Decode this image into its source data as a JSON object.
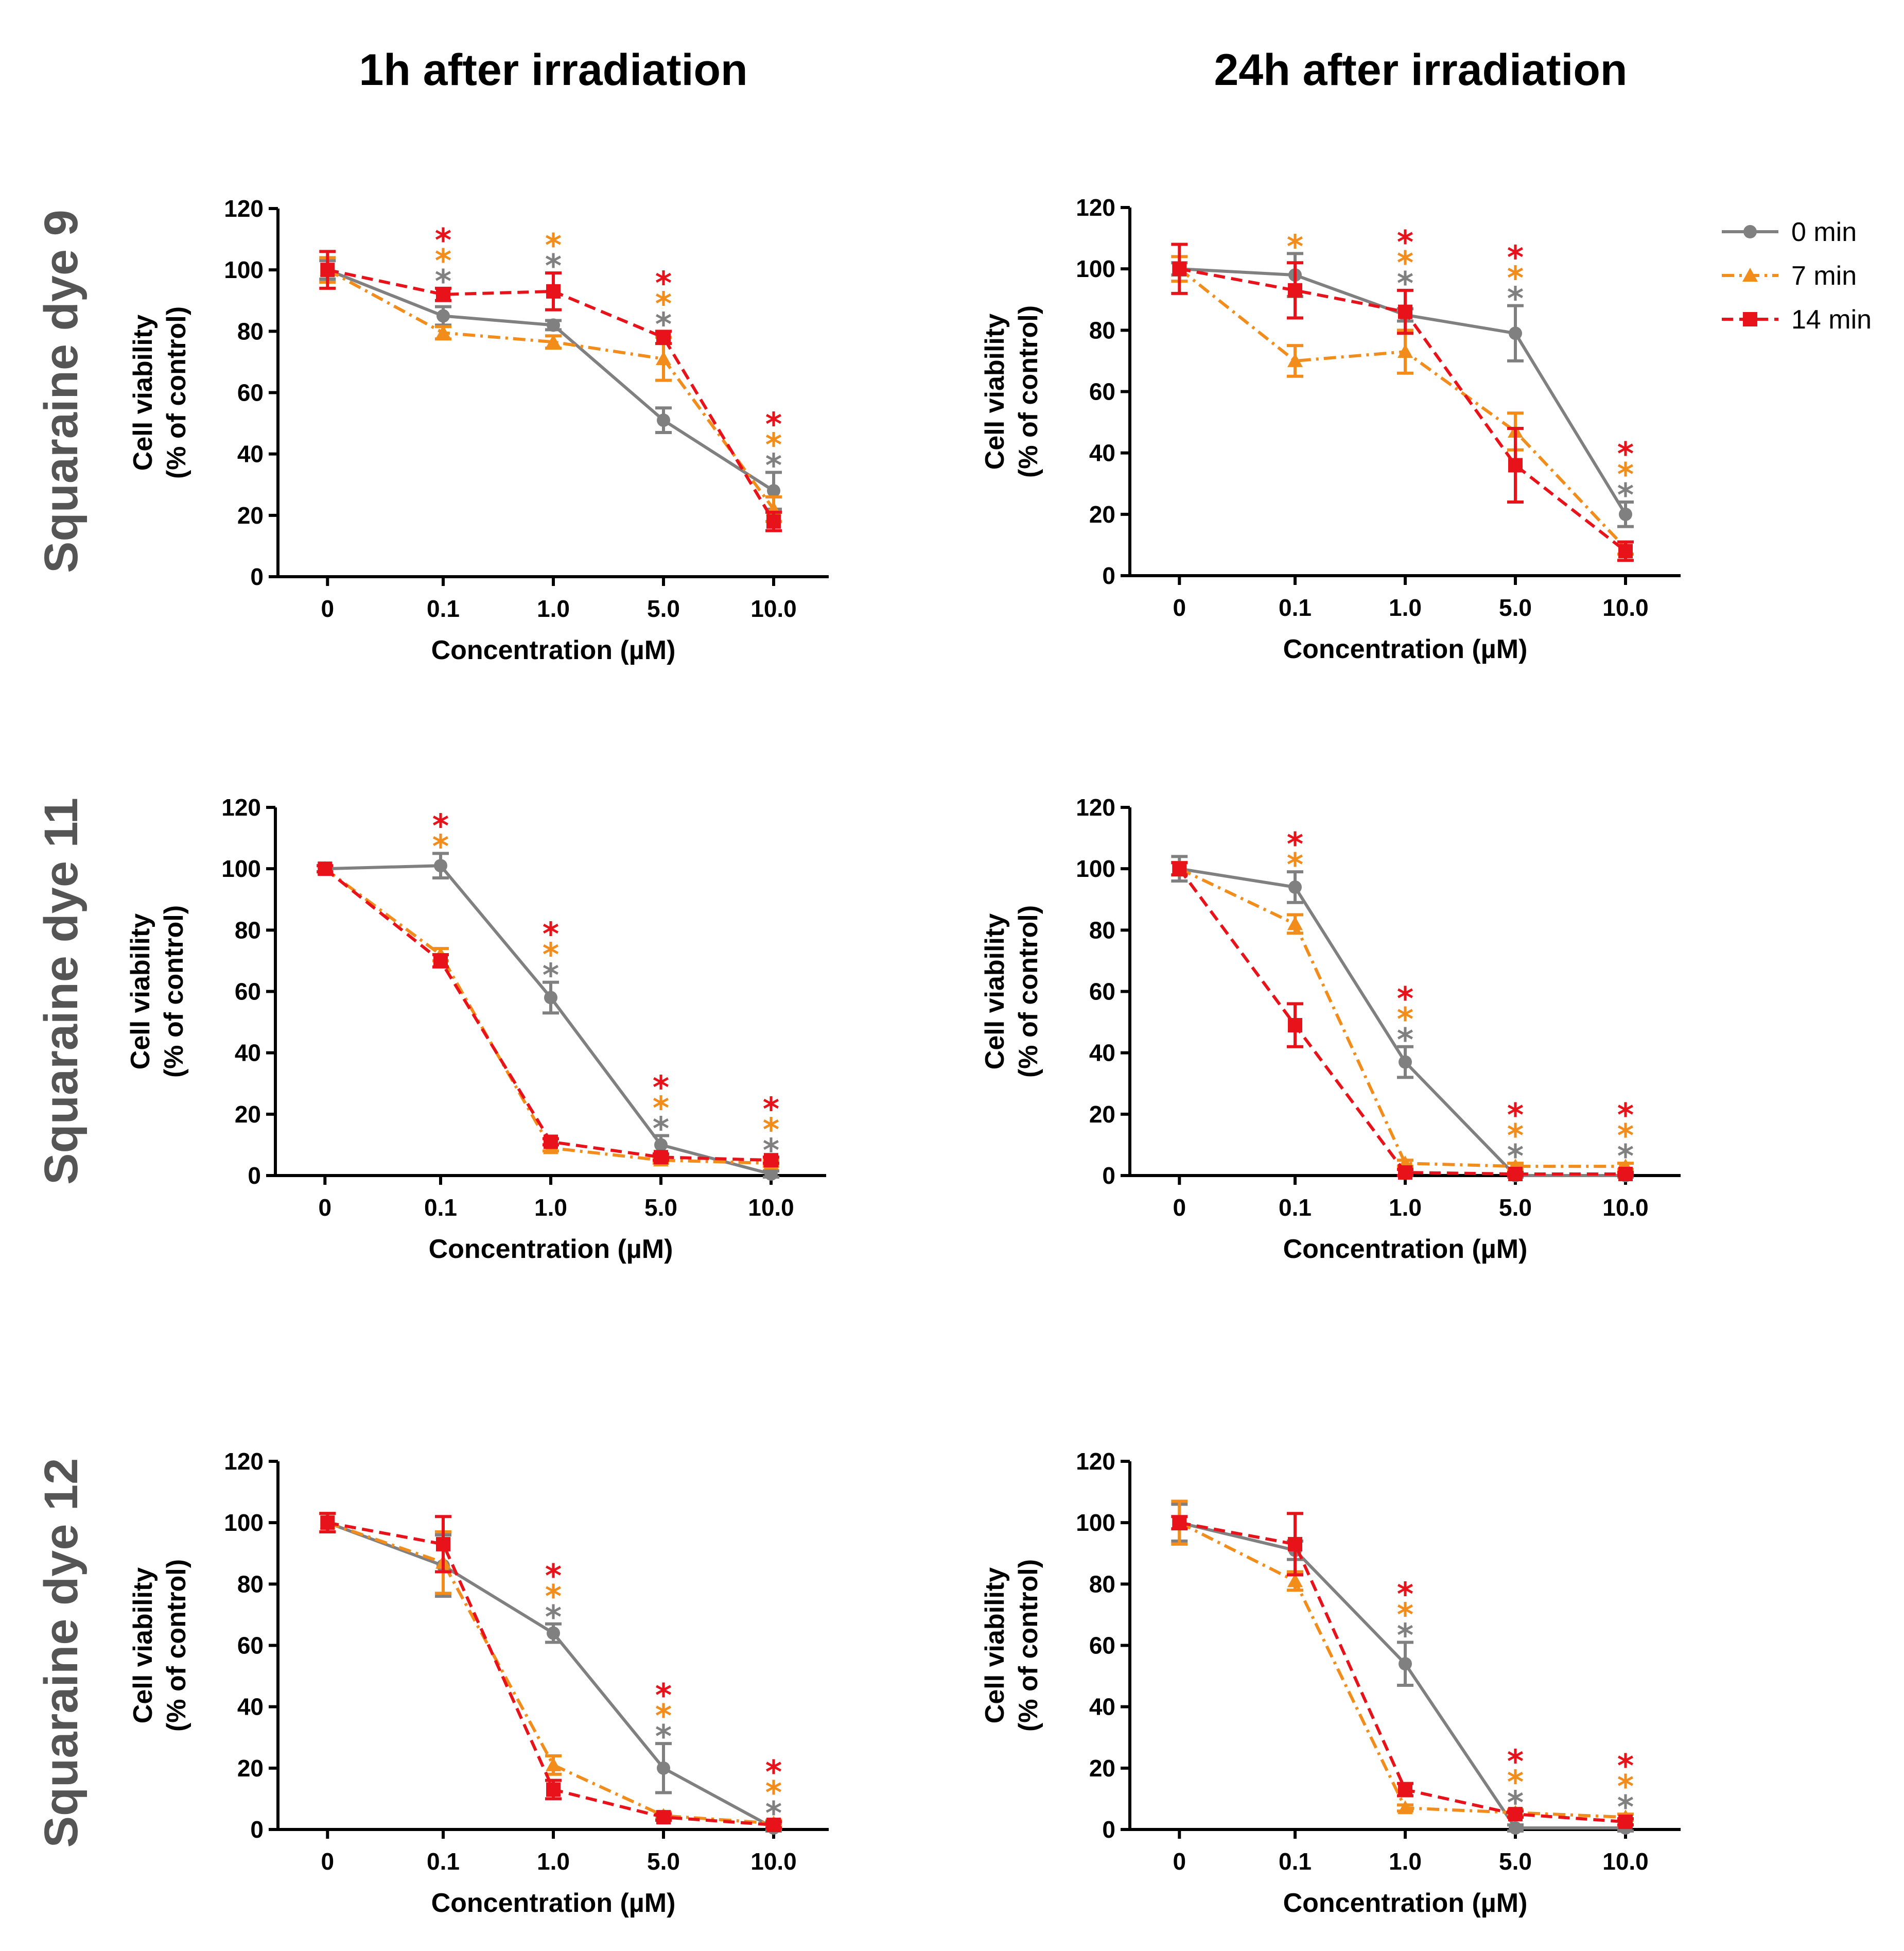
{
  "column_titles": [
    "1h after irradiation",
    "24h after irradiation"
  ],
  "row_titles": [
    "Squaraine dye 9",
    "Squaraine dye 11",
    "Squaraine dye 12"
  ],
  "legend": [
    {
      "name": "0 min",
      "color": "#808080",
      "marker": "circle",
      "dash": "solid"
    },
    {
      "name": "7 min",
      "color": "#f28c1a",
      "marker": "triangle",
      "dash": "dashdot"
    },
    {
      "name": "14 min",
      "color": "#e8121a",
      "marker": "square",
      "dash": "dashed"
    }
  ],
  "chart_data": [
    {
      "id": "dye9-1h",
      "type": "line",
      "title": "1h after irradiation",
      "row": "Squaraine dye 9",
      "xlabel": "Concentration (µM)",
      "ylabel_line1": "Cell viability",
      "ylabel_line2": "(% of control)",
      "ylim": [
        0,
        120
      ],
      "yticks": [
        "0",
        "20",
        "40",
        "60",
        "80",
        "100",
        "120"
      ],
      "categories": [
        "0",
        "0.1",
        "1.0",
        "5.0",
        "10.0"
      ],
      "series": [
        {
          "name": "0 min",
          "values": [
            100,
            85,
            82,
            51,
            28
          ],
          "errors": [
            3,
            3,
            1.5,
            4,
            6
          ]
        },
        {
          "name": "7 min",
          "values": [
            100,
            79.5,
            76.5,
            71,
            22
          ],
          "errors": [
            4,
            2,
            2,
            7,
            4
          ]
        },
        {
          "name": "14 min",
          "values": [
            100,
            92,
            93,
            78,
            18
          ],
          "errors": [
            6,
            2,
            6,
            2,
            3
          ]
        }
      ],
      "significance": [
        [],
        [
          "14 min",
          "7 min",
          "0 min"
        ],
        [
          "7 min",
          "0 min"
        ],
        [
          "14 min",
          "7 min",
          "0 min"
        ],
        [
          "14 min",
          "7 min",
          "0 min"
        ]
      ]
    },
    {
      "id": "dye9-24h",
      "type": "line",
      "title": "24h after irradiation",
      "row": "Squaraine dye 9",
      "xlabel": "Concentration (µM)",
      "ylabel_line1": "Cell viability",
      "ylabel_line2": "(% of control)",
      "ylim": [
        0,
        120
      ],
      "yticks": [
        "0",
        "20",
        "40",
        "60",
        "80",
        "100",
        "120"
      ],
      "categories": [
        "0",
        "0.1",
        "1.0",
        "5.0",
        "10.0"
      ],
      "series": [
        {
          "name": "0 min",
          "values": [
            100,
            98,
            85,
            79,
            20
          ],
          "errors": [
            2,
            7,
            2,
            9,
            4
          ]
        },
        {
          "name": "7 min",
          "values": [
            100,
            70,
            73,
            47,
            9
          ],
          "errors": [
            4,
            5,
            7,
            6,
            2
          ]
        },
        {
          "name": "14 min",
          "values": [
            100,
            93,
            86,
            36,
            8
          ],
          "errors": [
            8,
            9,
            7,
            12,
            3
          ]
        }
      ],
      "significance": [
        [],
        [
          "7 min"
        ],
        [
          "14 min",
          "7 min",
          "0 min"
        ],
        [
          "14 min",
          "7 min",
          "0 min"
        ],
        [
          "14 min",
          "7 min",
          "0 min"
        ]
      ]
    },
    {
      "id": "dye11-1h",
      "type": "line",
      "title": "1h after irradiation",
      "row": "Squaraine dye 11",
      "xlabel": "Concentration (µM)",
      "ylabel_line1": "Cell viability",
      "ylabel_line2": "(% of control)",
      "ylim": [
        0,
        120
      ],
      "yticks": [
        "0",
        "20",
        "40",
        "60",
        "80",
        "100",
        "120"
      ],
      "categories": [
        "0",
        "0.1",
        "1.0",
        "5.0",
        "10.0"
      ],
      "series": [
        {
          "name": "0 min",
          "values": [
            100,
            101,
            58,
            10,
            0.5
          ],
          "errors": [
            1,
            4,
            5,
            3,
            1
          ]
        },
        {
          "name": "7 min",
          "values": [
            100,
            72,
            9,
            5,
            4
          ],
          "errors": [
            1,
            2,
            1,
            1,
            1
          ]
        },
        {
          "name": "14 min",
          "values": [
            100,
            70,
            11,
            6,
            5
          ],
          "errors": [
            1,
            2,
            1,
            1,
            1
          ]
        }
      ],
      "significance": [
        [],
        [
          "14 min",
          "7 min"
        ],
        [
          "14 min",
          "7 min",
          "0 min"
        ],
        [
          "14 min",
          "7 min",
          "0 min"
        ],
        [
          "14 min",
          "7 min",
          "0 min"
        ]
      ]
    },
    {
      "id": "dye11-24h",
      "type": "line",
      "title": "24h after irradiation",
      "row": "Squaraine dye 11",
      "xlabel": "Concentration (µM)",
      "ylabel_line1": "Cell viability",
      "ylabel_line2": "(% of control)",
      "ylim": [
        0,
        120
      ],
      "yticks": [
        "0",
        "20",
        "40",
        "60",
        "80",
        "100",
        "120"
      ],
      "categories": [
        "0",
        "0.1",
        "1.0",
        "5.0",
        "10.0"
      ],
      "series": [
        {
          "name": "0 min",
          "values": [
            100,
            94,
            37,
            0,
            0
          ],
          "errors": [
            4,
            5,
            5,
            0.5,
            0.5
          ]
        },
        {
          "name": "7 min",
          "values": [
            100,
            82,
            4,
            3,
            3
          ],
          "errors": [
            2,
            3,
            1,
            1,
            1
          ]
        },
        {
          "name": "14 min",
          "values": [
            100,
            49,
            1,
            0.5,
            0.5
          ],
          "errors": [
            2,
            7,
            1,
            0.5,
            0.5
          ]
        }
      ],
      "significance": [
        [],
        [
          "14 min",
          "7 min"
        ],
        [
          "14 min",
          "7 min",
          "0 min"
        ],
        [
          "14 min",
          "7 min",
          "0 min"
        ],
        [
          "14 min",
          "7 min",
          "0 min"
        ]
      ]
    },
    {
      "id": "dye12-1h",
      "type": "line",
      "title": "1h after irradiation",
      "row": "Squaraine dye 12",
      "xlabel": "Concentration (µM)",
      "ylabel_line1": "Cell viability",
      "ylabel_line2": "(% of control)",
      "ylim": [
        0,
        120
      ],
      "yticks": [
        "0",
        "20",
        "40",
        "60",
        "80",
        "100",
        "120"
      ],
      "categories": [
        "0",
        "0.1",
        "1.0",
        "5.0",
        "10.0"
      ],
      "series": [
        {
          "name": "0 min",
          "values": [
            100,
            86,
            64,
            20,
            0.5
          ],
          "errors": [
            3,
            10,
            3,
            8,
            1
          ]
        },
        {
          "name": "7 min",
          "values": [
            100,
            87,
            21,
            4.5,
            2
          ],
          "errors": [
            3,
            10,
            3,
            1,
            1
          ]
        },
        {
          "name": "14 min",
          "values": [
            100,
            93,
            13,
            4,
            1.5
          ],
          "errors": [
            3,
            9,
            3,
            1,
            1
          ]
        }
      ],
      "significance": [
        [],
        [],
        [
          "14 min",
          "7 min",
          "0 min"
        ],
        [
          "14 min",
          "7 min",
          "0 min"
        ],
        [
          "14 min",
          "7 min",
          "0 min"
        ]
      ]
    },
    {
      "id": "dye12-24h",
      "type": "line",
      "title": "24h after irradiation",
      "row": "Squaraine dye 12",
      "xlabel": "Concentration (µM)",
      "ylabel_line1": "Cell viability",
      "ylabel_line2": "(% of control)",
      "ylim": [
        0,
        120
      ],
      "yticks": [
        "0",
        "20",
        "40",
        "60",
        "80",
        "100",
        "120"
      ],
      "categories": [
        "0",
        "0.1",
        "1.0",
        "5.0",
        "10.0"
      ],
      "series": [
        {
          "name": "0 min",
          "values": [
            100,
            91,
            54,
            0.5,
            0.5
          ],
          "errors": [
            6,
            3,
            7,
            1,
            1
          ]
        },
        {
          "name": "7 min",
          "values": [
            100,
            81,
            7,
            5.5,
            4
          ],
          "errors": [
            7,
            3,
            1,
            1,
            1
          ]
        },
        {
          "name": "14 min",
          "values": [
            100,
            93,
            13,
            5,
            2.5
          ],
          "errors": [
            2,
            10,
            2,
            1,
            1
          ]
        }
      ],
      "significance": [
        [],
        [],
        [
          "14 min",
          "7 min",
          "0 min"
        ],
        [
          "14 min",
          "7 min",
          "0 min"
        ],
        [
          "14 min",
          "7 min",
          "0 min"
        ]
      ]
    }
  ]
}
